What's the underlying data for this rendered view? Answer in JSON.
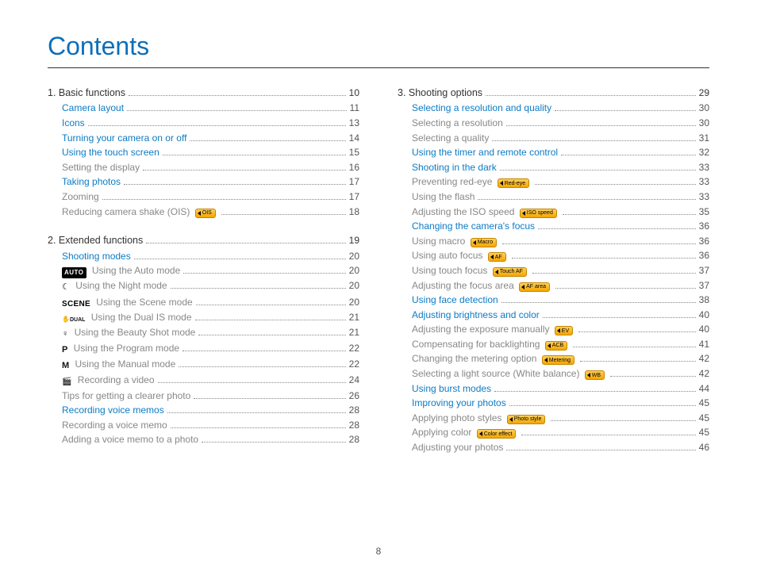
{
  "title": "Contents",
  "page_number": "8",
  "colors": {
    "title": "#0d6fb8",
    "chapter_link": "#0d7bc4",
    "sub_text": "#888888",
    "section_text": "#333333",
    "tag_gradient_top": "#ffcf5a",
    "tag_gradient_bottom": "#f5a600",
    "tag_border": "#c68600"
  },
  "columns": [
    [
      {
        "level": "section",
        "text": "1. Basic functions",
        "page": "10"
      },
      {
        "level": "chapter",
        "text": "Camera layout",
        "page": "11"
      },
      {
        "level": "chapter",
        "text": "Icons",
        "page": "13"
      },
      {
        "level": "chapter",
        "text": "Turning your camera on or off",
        "page": "14"
      },
      {
        "level": "chapter",
        "text": "Using the touch screen",
        "page": "15"
      },
      {
        "level": "sub",
        "text": "Setting the display",
        "page": "16"
      },
      {
        "level": "chapter",
        "text": "Taking photos",
        "page": "17"
      },
      {
        "level": "sub",
        "text": "Zooming",
        "page": "17"
      },
      {
        "level": "sub",
        "text": "Reducing camera shake (OIS)",
        "tag": "OIS",
        "page": "18"
      },
      {
        "level": "section",
        "text": "2. Extended functions",
        "page": "19"
      },
      {
        "level": "chapter",
        "text": "Shooting modes",
        "page": "20"
      },
      {
        "level": "sub",
        "mode": "auto",
        "text": "Using the Auto mode",
        "page": "20"
      },
      {
        "level": "sub",
        "mode": "night",
        "text": "Using the Night mode",
        "page": "20"
      },
      {
        "level": "sub",
        "mode": "scene",
        "text": "Using the Scene mode",
        "page": "20"
      },
      {
        "level": "sub",
        "mode": "dual",
        "text": "Using the Dual IS mode",
        "page": "21"
      },
      {
        "level": "sub",
        "mode": "beauty",
        "text": "Using the Beauty Shot mode",
        "page": "21"
      },
      {
        "level": "sub",
        "mode": "p",
        "text": "Using the Program mode",
        "page": "22"
      },
      {
        "level": "sub",
        "mode": "m",
        "text": "Using the Manual mode",
        "page": "22"
      },
      {
        "level": "sub",
        "mode": "video",
        "text": "Recording a video",
        "page": "24"
      },
      {
        "level": "sub",
        "text": "Tips for getting a clearer photo",
        "page": "26"
      },
      {
        "level": "chapter",
        "text": "Recording voice memos",
        "page": "28"
      },
      {
        "level": "sub",
        "text": "Recording a voice memo",
        "page": "28"
      },
      {
        "level": "sub",
        "text": "Adding a voice memo to a photo",
        "page": "28"
      }
    ],
    [
      {
        "level": "section",
        "text": "3. Shooting options",
        "page": "29"
      },
      {
        "level": "chapter",
        "text": "Selecting a resolution and quality",
        "page": "30"
      },
      {
        "level": "sub",
        "text": "Selecting a resolution",
        "page": "30"
      },
      {
        "level": "sub",
        "text": "Selecting a quality",
        "page": "31"
      },
      {
        "level": "chapter",
        "text": "Using the timer and remote control",
        "page": "32"
      },
      {
        "level": "chapter",
        "text": "Shooting in the dark",
        "page": "33"
      },
      {
        "level": "sub",
        "text": "Preventing red-eye",
        "tag": "Red-eye",
        "page": "33"
      },
      {
        "level": "sub",
        "text": "Using the flash",
        "page": "33"
      },
      {
        "level": "sub",
        "text": "Adjusting the ISO speed",
        "tag": "ISO speed",
        "page": "35"
      },
      {
        "level": "chapter",
        "text": "Changing the camera's focus",
        "page": "36"
      },
      {
        "level": "sub",
        "text": "Using macro",
        "tag": "Macro",
        "page": "36"
      },
      {
        "level": "sub",
        "text": "Using auto focus",
        "tag": "AF",
        "page": "36"
      },
      {
        "level": "sub",
        "text": "Using touch focus",
        "tag": "Touch AF",
        "page": "37"
      },
      {
        "level": "sub",
        "text": "Adjusting the focus area",
        "tag": "AF area",
        "page": "37"
      },
      {
        "level": "chapter",
        "text": "Using face detection",
        "page": "38"
      },
      {
        "level": "chapter",
        "text": "Adjusting brightness and color",
        "page": "40"
      },
      {
        "level": "sub",
        "text": "Adjusting the exposure manually",
        "tag": "EV",
        "page": "40"
      },
      {
        "level": "sub",
        "text": "Compensating for backlighting",
        "tag": "ACB",
        "page": "41"
      },
      {
        "level": "sub",
        "text": "Changing the metering option",
        "tag": "Metering",
        "page": "42"
      },
      {
        "level": "sub",
        "text": "Selecting a light source (White balance)",
        "tag": "WB",
        "page": "42"
      },
      {
        "level": "chapter",
        "text": "Using burst modes",
        "page": "44"
      },
      {
        "level": "chapter",
        "text": "Improving your photos",
        "page": "45"
      },
      {
        "level": "sub",
        "text": "Applying photo styles",
        "tag": "Photo style",
        "page": "45"
      },
      {
        "level": "sub",
        "text": "Applying color",
        "tag": "Color effect",
        "page": "45"
      },
      {
        "level": "sub",
        "text": "Adjusting your photos",
        "page": "46"
      }
    ]
  ]
}
